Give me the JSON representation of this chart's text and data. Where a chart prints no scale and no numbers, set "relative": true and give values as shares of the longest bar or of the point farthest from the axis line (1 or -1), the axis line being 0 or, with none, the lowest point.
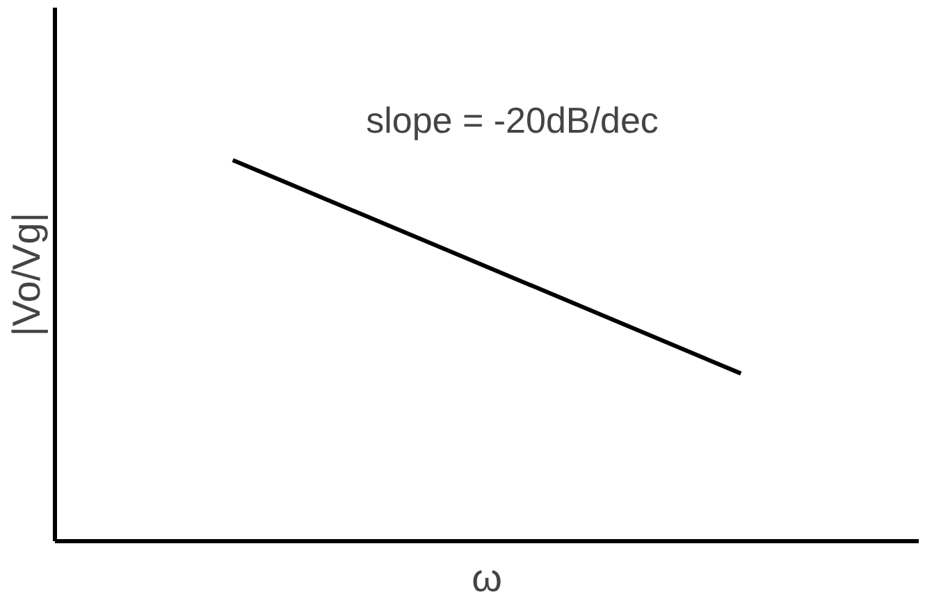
{
  "chart_data": {
    "type": "line",
    "relative": true,
    "xlabel": "ω",
    "ylabel": "|Vo/Vg|",
    "categories": [
      null,
      null
    ],
    "series": [
      {
        "color": "#000000",
        "values": [
          1,
          0.44
        ]
      }
    ],
    "annotations": [
      "slope = -20dB/dec"
    ],
    "grid": false,
    "marker": "none",
    "line_style": "solid"
  }
}
